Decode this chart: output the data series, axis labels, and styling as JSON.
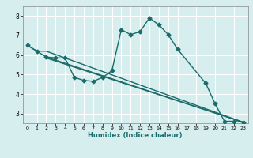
{
  "xlabel": "Humidex (Indice chaleur)",
  "background_color": "#d6eeee",
  "grid_color": "#ffffff",
  "line_color": "#1a6b6b",
  "xlim": [
    -0.5,
    23.5
  ],
  "ylim": [
    2.5,
    8.5
  ],
  "yticks": [
    3,
    4,
    5,
    6,
    7,
    8
  ],
  "xticks": [
    0,
    1,
    2,
    3,
    4,
    5,
    6,
    7,
    8,
    9,
    10,
    11,
    12,
    13,
    14,
    15,
    16,
    17,
    18,
    19,
    20,
    21,
    22,
    23
  ],
  "series1_x": [
    0,
    1,
    2,
    3,
    4,
    5,
    6,
    7,
    8,
    9,
    10,
    11,
    12,
    13,
    14,
    15,
    16,
    19,
    20,
    21,
    22,
    23
  ],
  "series1_y": [
    6.5,
    6.2,
    5.9,
    5.85,
    5.85,
    4.85,
    4.7,
    4.65,
    4.85,
    5.2,
    7.3,
    7.05,
    7.2,
    7.9,
    7.55,
    7.05,
    6.3,
    4.55,
    3.5,
    2.6,
    2.6,
    2.55
  ],
  "series2_x": [
    0,
    1,
    2,
    23
  ],
  "series2_y": [
    6.5,
    6.2,
    6.2,
    2.55
  ],
  "series3_x": [
    2,
    23
  ],
  "series3_y": [
    5.9,
    2.55
  ],
  "series4_x": [
    2,
    23
  ],
  "series4_y": [
    5.85,
    2.55
  ],
  "marker_size": 2.5,
  "line_width": 1.0
}
